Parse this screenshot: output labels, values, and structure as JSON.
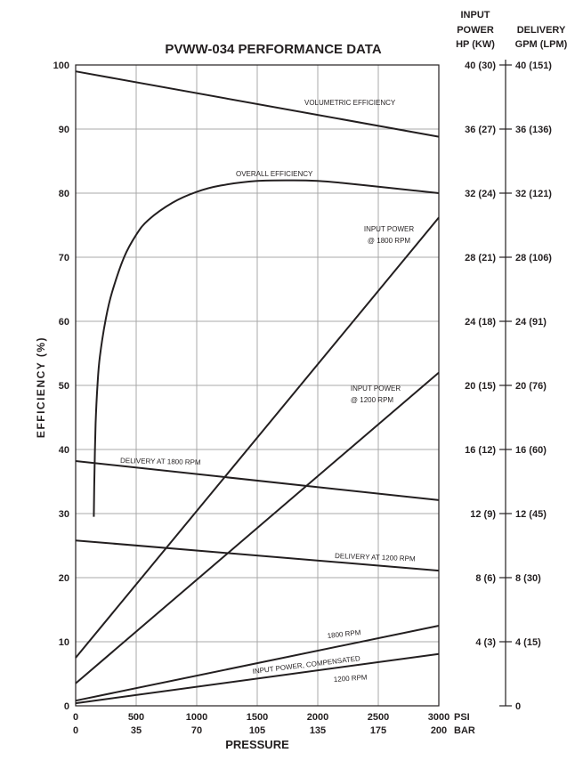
{
  "chart_data": {
    "type": "line",
    "title": "PVWW-034 PERFORMANCE DATA",
    "xlabel": "PRESSURE",
    "ylabel": "EFFICIENCY (%)",
    "xlim": [
      0,
      3000
    ],
    "ylim": [
      0,
      100
    ],
    "grid": true,
    "x_ticks_psi": [
      "0",
      "500",
      "1000",
      "1500",
      "2000",
      "2500",
      "3000"
    ],
    "x_unit_psi": "PSI",
    "x_ticks_bar": [
      "0",
      "35",
      "70",
      "105",
      "135",
      "175",
      "200"
    ],
    "x_unit_bar": "BAR",
    "y_ticks": [
      "0",
      "10",
      "20",
      "30",
      "40",
      "50",
      "60",
      "70",
      "80",
      "90",
      "100"
    ],
    "right_axis_power": {
      "header": [
        "INPUT",
        "POWER",
        "HP (KW)"
      ],
      "ticks": [
        "40 (30)",
        "36 (27)",
        "32 (24)",
        "28 (21)",
        "24 (18)",
        "20 (15)",
        "16 (12)",
        "12 (9)",
        "8 (6)",
        "4 (3)"
      ]
    },
    "right_axis_delivery": {
      "header": [
        "DELIVERY",
        "GPM (LPM)"
      ],
      "ticks": [
        "40 (151)",
        "36 (136)",
        "32 (121)",
        "28 (106)",
        "24 (91)",
        "20 (76)",
        "16 (60)",
        "12 (45)",
        "8 (30)",
        "4 (15)",
        "0"
      ]
    },
    "series": [
      {
        "key": "volumetric",
        "name": "VOLUMETRIC EFFICIENCY",
        "x": [
          0,
          3000
        ],
        "y": [
          99,
          88.8
        ]
      },
      {
        "key": "overall",
        "name": "OVERALL EFFICIENCY",
        "x": [
          150,
          155,
          165,
          180,
          200,
          250,
          300,
          400,
          500,
          600,
          800,
          1000,
          1200,
          1500,
          1800,
          2000,
          2200,
          2500,
          2800,
          3000
        ],
        "y": [
          29.5,
          36,
          44,
          50,
          54.5,
          60.5,
          64.5,
          70,
          73.5,
          75.8,
          78.5,
          80.2,
          81.2,
          81.9,
          82,
          81.9,
          81.6,
          81,
          80.4,
          80
        ]
      },
      {
        "key": "input1800",
        "name": "INPUT POWER @ 1800 RPM",
        "x": [
          0,
          3000
        ],
        "y": [
          7.5,
          76.2
        ]
      },
      {
        "key": "input1200",
        "name": "INPUT POWER @ 1200 RPM",
        "x": [
          0,
          3000
        ],
        "y": [
          3.5,
          52
        ]
      },
      {
        "key": "delivery1800",
        "name": "DELIVERY AT 1800 RPM",
        "x": [
          0,
          3000
        ],
        "y": [
          38.2,
          32.1
        ]
      },
      {
        "key": "delivery1200",
        "name": "DELIVERY AT 1200 RPM",
        "x": [
          0,
          3000
        ],
        "y": [
          25.8,
          21.1
        ]
      },
      {
        "key": "comp1800",
        "name": "1800 RPM",
        "x": [
          0,
          3000
        ],
        "y": [
          0.8,
          12.5
        ]
      },
      {
        "key": "comp1200",
        "name": "1200 RPM",
        "x": [
          0,
          3000
        ],
        "y": [
          0.4,
          8.1
        ]
      }
    ],
    "annotations": {
      "compensated": "INPUT POWER, COMPENSATED"
    }
  }
}
